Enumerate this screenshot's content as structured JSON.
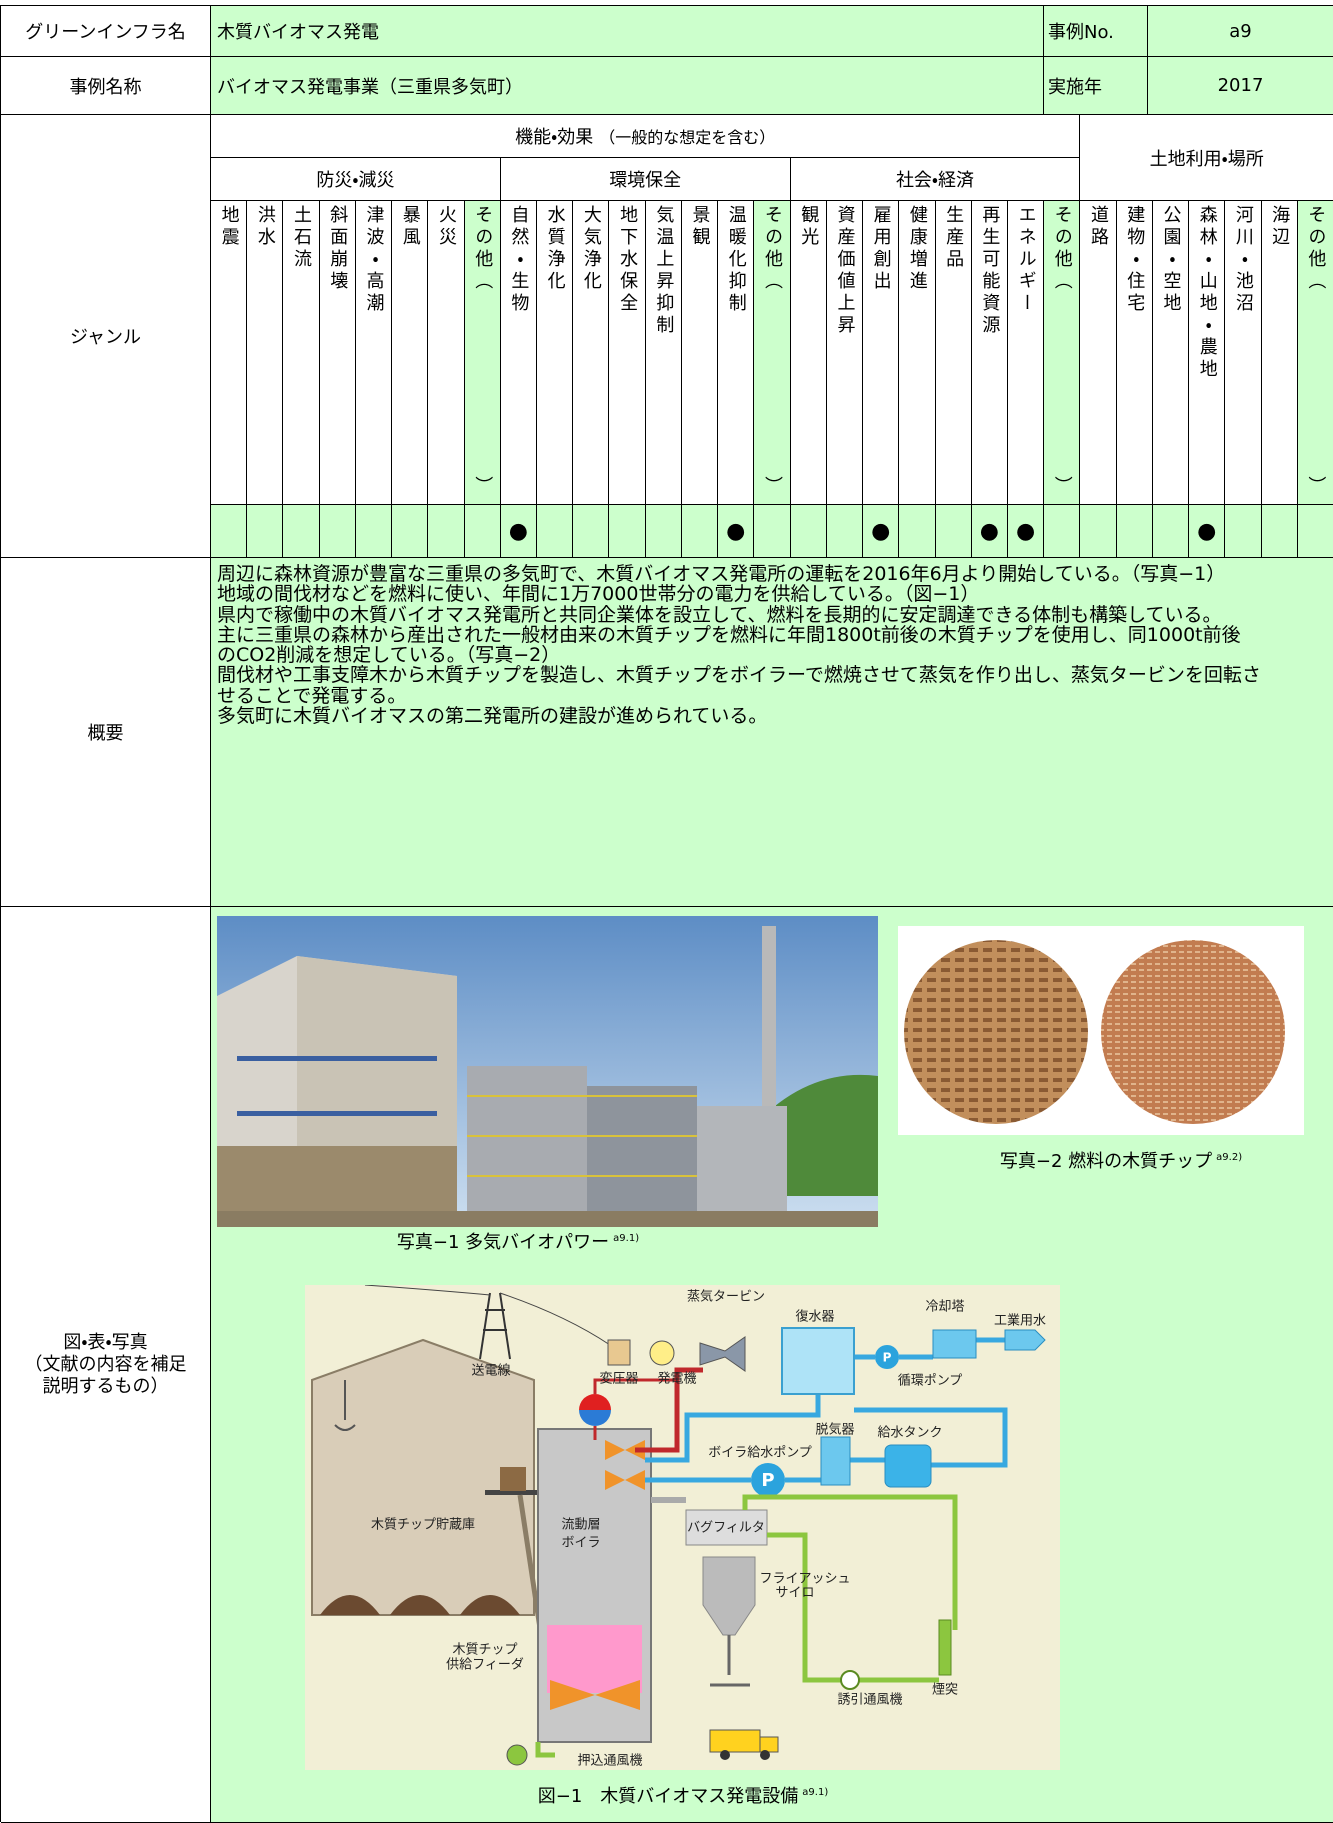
{
  "header": {
    "name_label": "グリーンインフラ名",
    "name": "木質バイオマス発電",
    "case_no_label": "事例No.",
    "case_no": "a9",
    "title_label": "事例名称",
    "title": "バイオマス発電事業（三重県多気町）",
    "year_label": "実施年",
    "year": "2017"
  },
  "genre": {
    "label": "ジャンル",
    "function_header": "機能・効果",
    "function_note": "（一般的な想定を含む）",
    "groups": [
      {
        "title": "防災・減災",
        "items": [
          {
            "label": "地震"
          },
          {
            "label": "洪水"
          },
          {
            "label": "土石流"
          },
          {
            "label": "斜面崩壊"
          },
          {
            "label": "津波・高潮"
          },
          {
            "label": "暴風"
          },
          {
            "label": "火災"
          },
          {
            "label": "その他",
            "open": "（",
            "close": "）"
          }
        ]
      },
      {
        "title": "環境保全",
        "items": [
          {
            "label": "自然・生物",
            "mark": "●"
          },
          {
            "label": "水質浄化"
          },
          {
            "label": "大気浄化"
          },
          {
            "label": "地下水保全"
          },
          {
            "label": "気温上昇抑制"
          },
          {
            "label": "景観"
          },
          {
            "label": "温暖化抑制",
            "mark": "●"
          },
          {
            "label": "その他",
            "open": "（",
            "close": "）"
          }
        ]
      },
      {
        "title": "社会・経済",
        "items": [
          {
            "label": "観光"
          },
          {
            "label": "資産価値上昇"
          },
          {
            "label": "雇用創出",
            "mark": "●"
          },
          {
            "label": "健康増進"
          },
          {
            "label": "生産品"
          },
          {
            "label": "再生可能資源",
            "mark": "●"
          },
          {
            "label": "エネルギー",
            "mark": "●"
          },
          {
            "label": "その他",
            "open": "（",
            "close": "）"
          }
        ]
      }
    ],
    "land": {
      "title": "土地利用・場所",
      "items": [
        {
          "label": "道路"
        },
        {
          "label": "建物・住宅"
        },
        {
          "label": "公園・空地"
        },
        {
          "label": "森林・山地・農地",
          "mark": "●"
        },
        {
          "label": "河川・池沼"
        },
        {
          "label": "海辺"
        },
        {
          "label": "その他",
          "open": "（",
          "close": "）"
        }
      ]
    }
  },
  "summary": {
    "label": "概要",
    "lines": [
      "周辺に森林資源が豊富な三重県の多気町で、木質バイオマス発電所の運転を2016年6月より開始している。（写真−1）",
      "地域の間伐材などを燃料に使い、年間に1万7000世帯分の電力を供給している。（図−1）",
      "県内で稼働中の木質バイオマス発電所と共同企業体を設立して、燃料を長期的に安定調達できる体制も構築している。",
      "主に三重県の森林から産出された一般材由来の木質チップを燃料に年間1800t前後の木質チップを使用し、同1000t前後",
      "のCO2削減を想定している。（写真−2）",
      "間伐材や工事支障木から木質チップを製造し、木質チップをボイラーで燃焼させて蒸気を作り出し、蒸気タービンを回転さ",
      "せることで発電する。",
      "多気町に木質バイオマスの第二発電所の建設が進められている。"
    ]
  },
  "figures": {
    "label_lines": [
      "図・表・写真",
      "（文献の内容を補足",
      "説明するもの）"
    ],
    "photo1": {
      "caption": "写真−1 多気バイオパワー",
      "source": "a9.1)"
    },
    "photo2": {
      "caption": "写真−2 燃料の木質チップ",
      "source": "a9.2)"
    },
    "diagram": {
      "caption": "図−1　木質バイオマス発電設備",
      "source": "a9.1)",
      "pump_symbol": "P",
      "labels": [
        "送電線",
        "変圧器",
        "発電機",
        "蒸気タービン",
        "復水器",
        "冷却塔",
        "工業用水",
        "循環ポンプ",
        "ボイラ給水ポンプ",
        "脱気器",
        "給水タンク",
        "木質チップ貯蔵庫",
        "流動層",
        "ボイラ",
        "バグフィルタ",
        "フライアッシュ",
        "サイロ",
        "木質チップ",
        "供給フィーダ",
        "誘引通風機",
        "煙突",
        "押込通風機"
      ]
    }
  }
}
